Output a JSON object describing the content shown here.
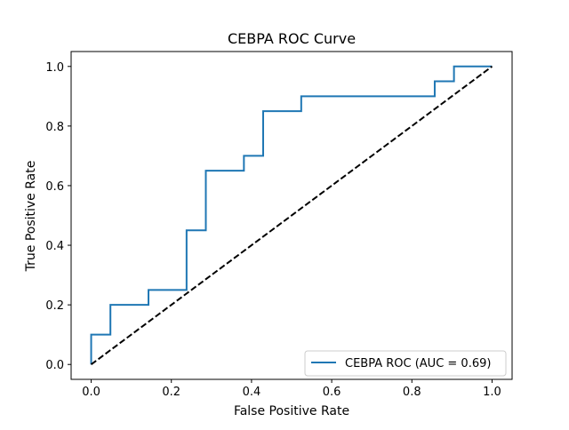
{
  "chart_data": {
    "type": "line",
    "title": "CEBPA ROC Curve",
    "xlabel": "False Positive Rate",
    "ylabel": "True Positive Rate",
    "xlim": [
      -0.05,
      1.05
    ],
    "ylim": [
      -0.05,
      1.05
    ],
    "xticks": [
      0.0,
      0.2,
      0.4,
      0.6,
      0.8,
      1.0
    ],
    "xtick_labels": [
      "0.0",
      "0.2",
      "0.4",
      "0.6",
      "0.8",
      "1.0"
    ],
    "yticks": [
      0.0,
      0.2,
      0.4,
      0.6,
      0.8,
      1.0
    ],
    "ytick_labels": [
      "0.0",
      "0.2",
      "0.4",
      "0.6",
      "0.8",
      "1.0"
    ],
    "grid": false,
    "legend_position": "lower-right",
    "series": [
      {
        "name": "CEBPA ROC (AUC = 0.69)",
        "color": "#1f77b4",
        "style": "solid",
        "x": [
          0.0,
          0.0,
          0.048,
          0.048,
          0.143,
          0.143,
          0.238,
          0.238,
          0.286,
          0.286,
          0.381,
          0.381,
          0.429,
          0.429,
          0.524,
          0.524,
          0.857,
          0.857,
          0.905,
          0.905,
          1.0
        ],
        "y": [
          0.0,
          0.1,
          0.1,
          0.2,
          0.2,
          0.25,
          0.25,
          0.45,
          0.45,
          0.65,
          0.65,
          0.7,
          0.7,
          0.85,
          0.85,
          0.9,
          0.9,
          0.95,
          0.95,
          1.0,
          1.0
        ]
      },
      {
        "color": "#000000",
        "style": "dashed",
        "x": [
          0.0,
          1.0
        ],
        "y": [
          0.0,
          1.0
        ]
      }
    ]
  }
}
